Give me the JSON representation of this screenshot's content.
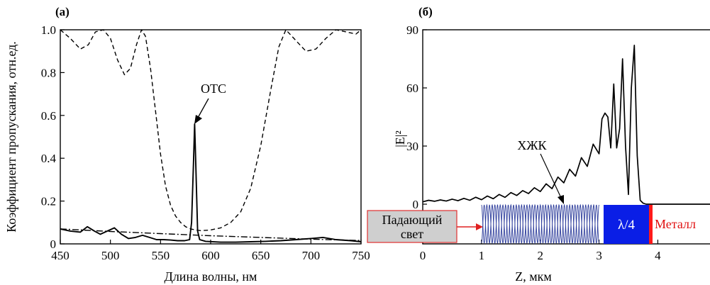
{
  "chart_data": [
    {
      "panel": "(a)",
      "type": "line",
      "xlabel": "Длина волны, нм",
      "ylabel": "Коэффициент пропускания, отн.ед.",
      "xlim": [
        450,
        750
      ],
      "ylim": [
        0,
        1.0
      ],
      "xticks": [
        "450",
        "500",
        "550",
        "600",
        "650",
        "700",
        "750"
      ],
      "yticks": [
        "0",
        "0.2",
        "0.4",
        "0.6",
        "0.8",
        "1.0"
      ],
      "annotation": "ОТС",
      "annotation_point": [
        584,
        0.56
      ],
      "series": [
        {
          "style": "dashed",
          "x": [
            450,
            460,
            470,
            478,
            485,
            493,
            500,
            507,
            514,
            520,
            526,
            531,
            535,
            540,
            545,
            550,
            555,
            560,
            565,
            570,
            575,
            580,
            585,
            590,
            600,
            610,
            620,
            630,
            640,
            650,
            660,
            668,
            675,
            685,
            695,
            705,
            715,
            725,
            735,
            745,
            750
          ],
          "y": [
            1.0,
            0.96,
            0.91,
            0.93,
            0.99,
            1.0,
            0.96,
            0.86,
            0.79,
            0.82,
            0.93,
            1.0,
            0.97,
            0.82,
            0.62,
            0.42,
            0.27,
            0.18,
            0.13,
            0.1,
            0.08,
            0.07,
            0.065,
            0.062,
            0.065,
            0.075,
            0.1,
            0.15,
            0.26,
            0.46,
            0.72,
            0.92,
            1.0,
            0.95,
            0.9,
            0.91,
            0.96,
            1.0,
            0.99,
            0.98,
            1.0
          ]
        },
        {
          "style": "solid",
          "x": [
            450,
            460,
            470,
            477,
            484,
            490,
            497,
            504,
            511,
            518,
            525,
            532,
            539,
            546,
            553,
            560,
            567,
            574,
            579,
            581,
            583,
            584,
            585,
            587,
            589,
            595,
            610,
            625,
            640,
            655,
            670,
            685,
            700,
            712,
            725,
            740,
            750
          ],
          "y": [
            0.07,
            0.06,
            0.055,
            0.08,
            0.06,
            0.045,
            0.06,
            0.075,
            0.045,
            0.025,
            0.03,
            0.04,
            0.03,
            0.02,
            0.02,
            0.018,
            0.015,
            0.015,
            0.02,
            0.1,
            0.4,
            0.56,
            0.4,
            0.06,
            0.02,
            0.012,
            0.008,
            0.008,
            0.01,
            0.012,
            0.015,
            0.02,
            0.025,
            0.03,
            0.02,
            0.015,
            0.01
          ]
        },
        {
          "style": "dashdot",
          "x": [
            450,
            500,
            550,
            600,
            650,
            700,
            750
          ],
          "y": [
            0.07,
            0.058,
            0.048,
            0.038,
            0.03,
            0.022,
            0.016
          ]
        }
      ]
    },
    {
      "panel": "(б)",
      "type": "line",
      "xlabel": "Z, мкм",
      "ylabel": "|E|²",
      "xlim": [
        0,
        4.9
      ],
      "ylim": [
        0,
        90
      ],
      "xticks": [
        "0",
        "1",
        "2",
        "3",
        "4"
      ],
      "yticks": [
        "0",
        "30",
        "60",
        "90"
      ],
      "labels": {
        "incident": [
          "Падающий",
          "свет"
        ],
        "clc": "ХЖК",
        "quarter": "λ/4",
        "metal": "Металл"
      },
      "series": [
        {
          "style": "solid",
          "x": [
            0,
            0.1,
            0.2,
            0.3,
            0.4,
            0.5,
            0.6,
            0.7,
            0.8,
            0.9,
            1.0,
            1.1,
            1.2,
            1.3,
            1.4,
            1.5,
            1.6,
            1.7,
            1.8,
            1.9,
            2.0,
            2.1,
            2.2,
            2.3,
            2.4,
            2.5,
            2.6,
            2.7,
            2.8,
            2.9,
            3.0,
            3.05,
            3.1,
            3.15,
            3.2,
            3.25,
            3.3,
            3.35,
            3.4,
            3.45,
            3.5,
            3.55,
            3.6,
            3.65,
            3.7,
            3.75,
            3.8,
            4.0,
            4.9
          ],
          "y": [
            1.2,
            2.0,
            1.5,
            2.2,
            1.6,
            2.6,
            1.8,
            3.0,
            2.0,
            3.6,
            2.3,
            4.2,
            2.8,
            5.0,
            3.5,
            6.0,
            4.5,
            7.0,
            5.5,
            8.5,
            6.5,
            10.5,
            8.0,
            14.0,
            11.0,
            18.0,
            14.5,
            24.0,
            19.5,
            31.0,
            26.0,
            44.0,
            47.0,
            45.0,
            29.0,
            62.0,
            29.0,
            39.0,
            75.0,
            30.0,
            5.0,
            60.0,
            82.0,
            25.0,
            2.0,
            0.5,
            0.0,
            0.0,
            0.0
          ]
        }
      ]
    }
  ]
}
